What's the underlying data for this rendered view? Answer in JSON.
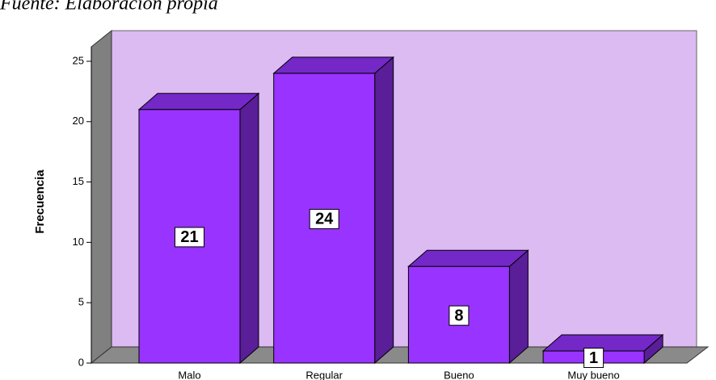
{
  "chart_data": {
    "type": "bar3d",
    "title": "Fuente: Elaboración propia",
    "ylabel": "Frecuencia",
    "categories": [
      "Malo",
      "Regular",
      "Bueno",
      "Muy bueno"
    ],
    "values": [
      21,
      24,
      8,
      1
    ],
    "color": "#9933ff",
    "ylim": [
      0,
      26
    ],
    "yticks": [
      0,
      5,
      10,
      15,
      20,
      25
    ],
    "grid": false
  }
}
